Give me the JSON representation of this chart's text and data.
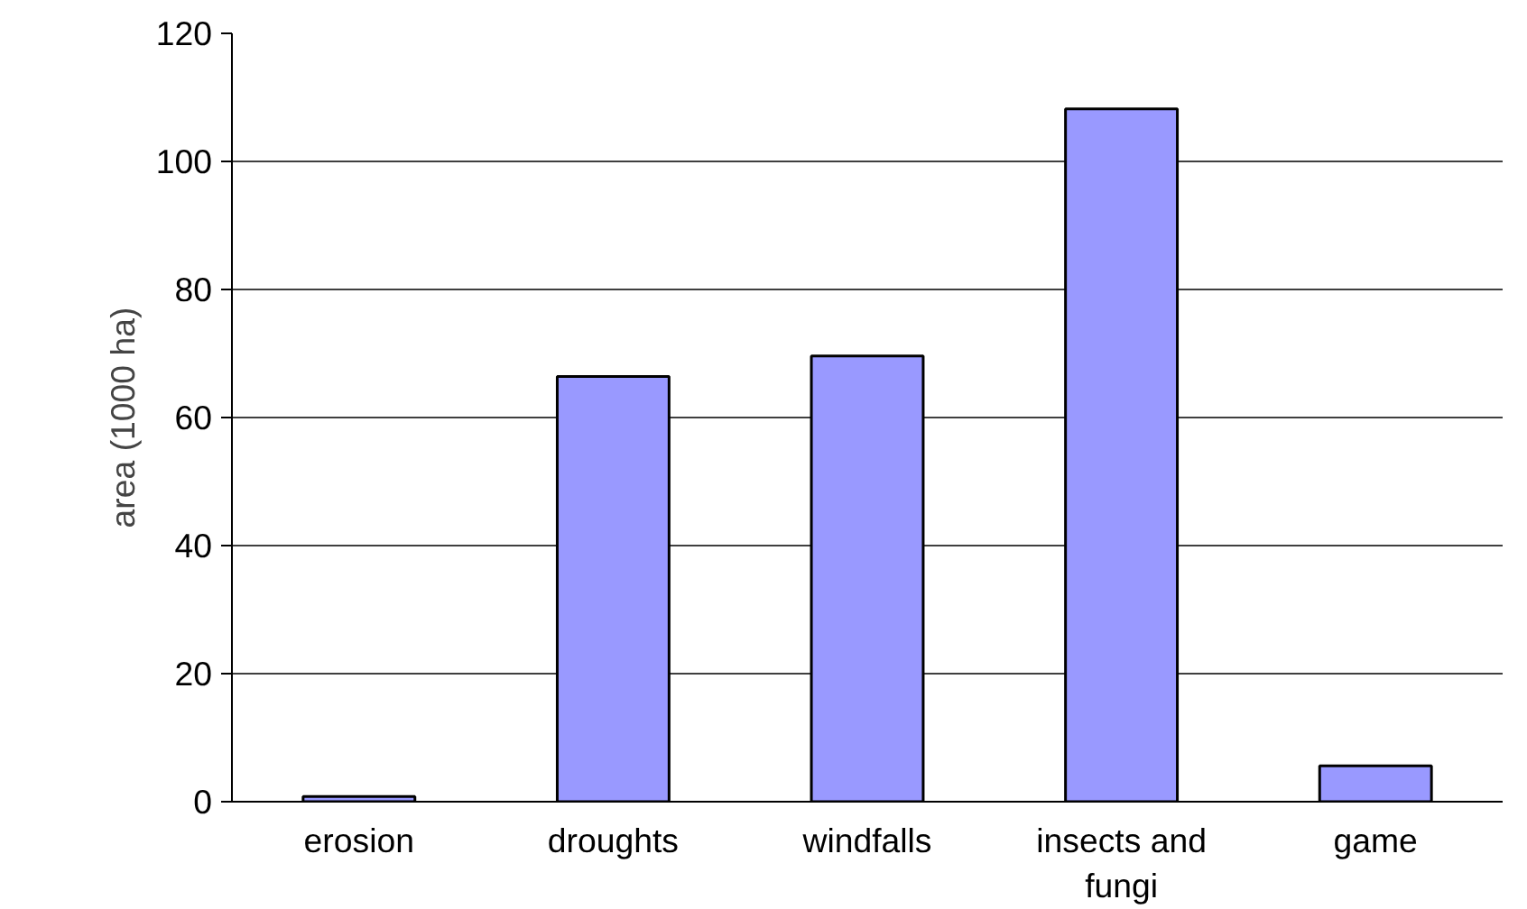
{
  "chart_data": {
    "type": "bar",
    "ylabel": "area (1000 ha)",
    "categories": [
      "erosion",
      "droughts",
      "windfalls",
      "insects and fungi",
      "game"
    ],
    "values": [
      0.8,
      66.4,
      69.6,
      108.2,
      5.6
    ],
    "color": "#9999ff",
    "ylim": [
      0,
      120
    ],
    "yticks": [
      0,
      20,
      40,
      60,
      80,
      100,
      120
    ],
    "grid": "y"
  }
}
